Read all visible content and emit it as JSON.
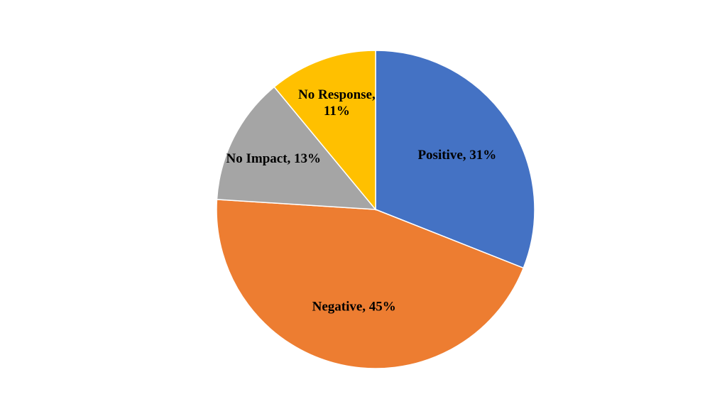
{
  "chart_data": {
    "type": "pie",
    "title": "",
    "legend": "none",
    "slices": [
      {
        "category": "Positive",
        "value": 31,
        "color": "#4472C4",
        "label_lines": [
          "Positive, 31%"
        ]
      },
      {
        "category": "Negative",
        "value": 45,
        "color": "#ED7D31",
        "label_lines": [
          "Negative, 45%"
        ]
      },
      {
        "category": "No Impact",
        "value": 13,
        "color": "#A5A5A5",
        "label_lines": [
          "No Impact, 13%"
        ]
      },
      {
        "category": "No Response",
        "value": 11,
        "color": "#FFC000",
        "label_lines": [
          "No Response,",
          "11%"
        ]
      }
    ]
  }
}
